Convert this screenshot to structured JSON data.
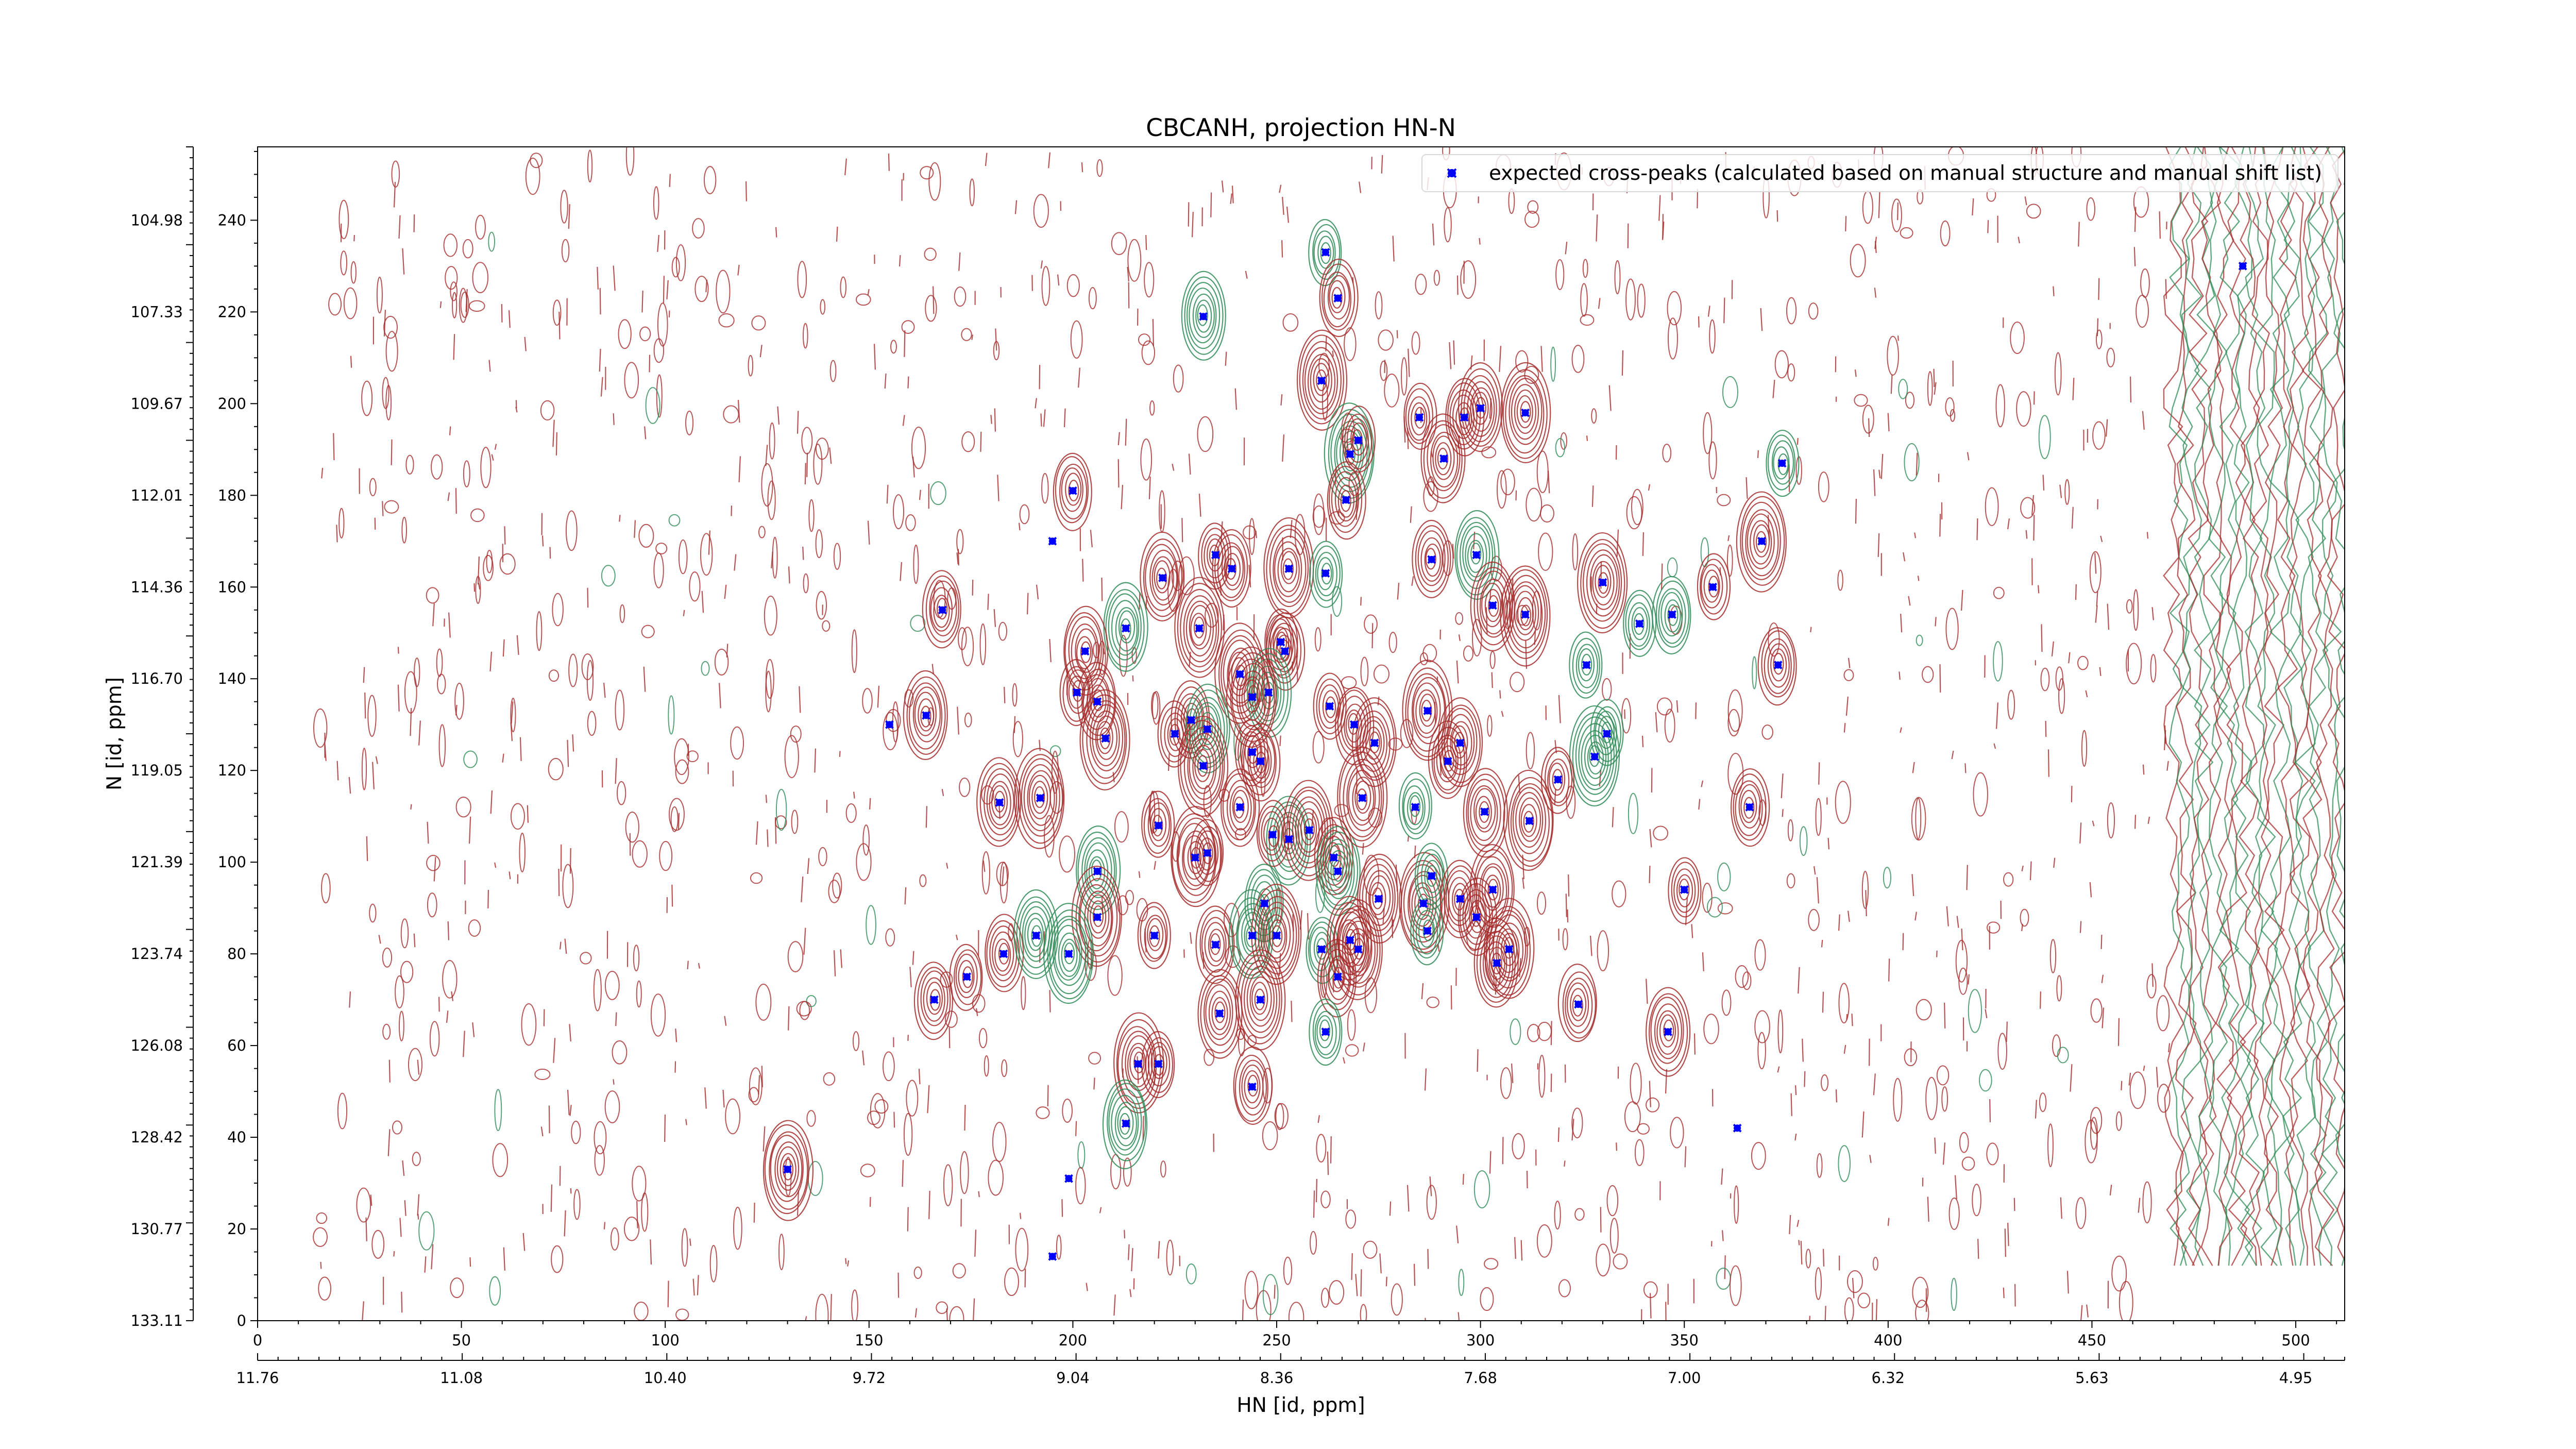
{
  "chart_data": {
    "type": "scatter",
    "title": "CBCANH, projection HN-N",
    "xlabel": "HN [id, ppm]",
    "ylabel": "N [id, ppm]",
    "xlim": [
      0,
      512
    ],
    "ylim": [
      0,
      256
    ],
    "x_ticks": [
      0,
      50,
      100,
      150,
      200,
      250,
      300,
      350,
      400,
      450,
      500
    ],
    "y_ticks": [
      0,
      20,
      40,
      60,
      80,
      100,
      120,
      140,
      160,
      180,
      200,
      220,
      240
    ],
    "x_ppm_ticks": [
      "11.76",
      "11.08",
      "10.40",
      "9.72",
      "9.04",
      "8.36",
      "7.68",
      "7.00",
      "6.32",
      "5.63",
      "4.95"
    ],
    "y_ppm_ticks": [
      "133.11",
      "130.77",
      "128.42",
      "126.08",
      "123.74",
      "121.39",
      "119.05",
      "116.70",
      "114.36",
      "112.01",
      "109.67",
      "107.33",
      "104.98"
    ],
    "legend": {
      "position": "top-right"
    },
    "series": [
      {
        "name": "expected cross-peaks (calculated based on manual structure and manual shift list)",
        "color": "#0000ff",
        "marker": "x",
        "points": [
          [
            262,
            233
          ],
          [
            265,
            223
          ],
          [
            232,
            219
          ],
          [
            261,
            205
          ],
          [
            285,
            197
          ],
          [
            296,
            197
          ],
          [
            300,
            199
          ],
          [
            311,
            198
          ],
          [
            374,
            187
          ],
          [
            200,
            181
          ],
          [
            291,
            188
          ],
          [
            268,
            189
          ],
          [
            270,
            192
          ],
          [
            267,
            179
          ],
          [
            195,
            170
          ],
          [
            369,
            170
          ],
          [
            235,
            167
          ],
          [
            239,
            164
          ],
          [
            222,
            162
          ],
          [
            253,
            164
          ],
          [
            262,
            163
          ],
          [
            288,
            166
          ],
          [
            299,
            167
          ],
          [
            330,
            161
          ],
          [
            357,
            160
          ],
          [
            168,
            155
          ],
          [
            213,
            151
          ],
          [
            231,
            151
          ],
          [
            251,
            148
          ],
          [
            252,
            146
          ],
          [
            303,
            156
          ],
          [
            311,
            154
          ],
          [
            339,
            152
          ],
          [
            347,
            154
          ],
          [
            203,
            146
          ],
          [
            241,
            141
          ],
          [
            201,
            137
          ],
          [
            206,
            135
          ],
          [
            248,
            137
          ],
          [
            244,
            136
          ],
          [
            263,
            134
          ],
          [
            269,
            130
          ],
          [
            274,
            126
          ],
          [
            287,
            133
          ],
          [
            326,
            143
          ],
          [
            155,
            130
          ],
          [
            164,
            132
          ],
          [
            208,
            127
          ],
          [
            225,
            128
          ],
          [
            229,
            131
          ],
          [
            233,
            129
          ],
          [
            232,
            121
          ],
          [
            244,
            124
          ],
          [
            246,
            122
          ],
          [
            295,
            126
          ],
          [
            328,
            123
          ],
          [
            331,
            128
          ],
          [
            373,
            143
          ],
          [
            182,
            113
          ],
          [
            192,
            114
          ],
          [
            221,
            108
          ],
          [
            241,
            112
          ],
          [
            253,
            105
          ],
          [
            258,
            107
          ],
          [
            249,
            106
          ],
          [
            264,
            101
          ],
          [
            265,
            98
          ],
          [
            271,
            114
          ],
          [
            284,
            112
          ],
          [
            292,
            122
          ],
          [
            301,
            111
          ],
          [
            312,
            109
          ],
          [
            319,
            118
          ],
          [
            366,
            112
          ],
          [
            206,
            98
          ],
          [
            230,
            101
          ],
          [
            233,
            102
          ],
          [
            247,
            91
          ],
          [
            275,
            92
          ],
          [
            286,
            91
          ],
          [
            288,
            97
          ],
          [
            295,
            92
          ],
          [
            303,
            94
          ],
          [
            206,
            88
          ],
          [
            220,
            84
          ],
          [
            235,
            82
          ],
          [
            244,
            84
          ],
          [
            250,
            84
          ],
          [
            261,
            81
          ],
          [
            265,
            75
          ],
          [
            268,
            83
          ],
          [
            270,
            81
          ],
          [
            287,
            85
          ],
          [
            299,
            88
          ],
          [
            304,
            78
          ],
          [
            307,
            81
          ],
          [
            350,
            94
          ],
          [
            183,
            80
          ],
          [
            191,
            84
          ],
          [
            199,
            80
          ],
          [
            174,
            75
          ],
          [
            166,
            70
          ],
          [
            236,
            67
          ],
          [
            246,
            70
          ],
          [
            262,
            63
          ],
          [
            324,
            69
          ],
          [
            346,
            63
          ],
          [
            216,
            56
          ],
          [
            221,
            56
          ],
          [
            244,
            51
          ],
          [
            213,
            43
          ],
          [
            130,
            33
          ],
          [
            363,
            42
          ],
          [
            199,
            31
          ],
          [
            195,
            14
          ],
          [
            487,
            230
          ]
        ]
      }
    ]
  }
}
